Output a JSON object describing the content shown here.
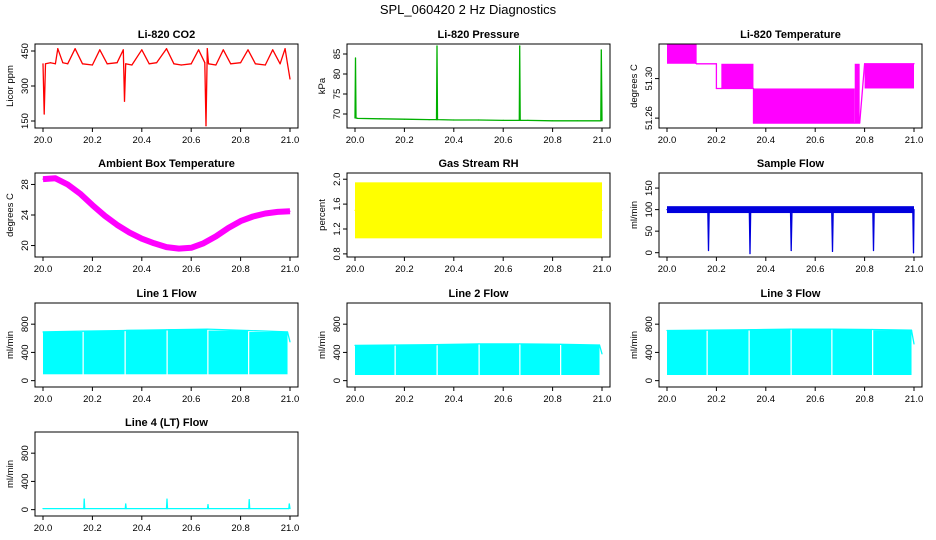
{
  "figure": {
    "title": "SPL_060420  2 Hz Diagnostics"
  },
  "chart_data": [
    {
      "type": "line",
      "title": "Li-820 CO2",
      "ylabel": "Licor ppm",
      "color": "#ff0000",
      "xlim": [
        20.0,
        21.0
      ],
      "ylim": [
        120,
        480
      ],
      "xticks": [
        "20.0",
        "20.2",
        "20.4",
        "20.6",
        "20.8",
        "21.0"
      ],
      "xtick_values": [
        20.0,
        20.2,
        20.4,
        20.6,
        20.8,
        21.0
      ],
      "yticks": [
        "150",
        "300",
        "450"
      ],
      "ytick_values": [
        150,
        300,
        450
      ],
      "series": [
        {
          "x": [
            20.0,
            20.005,
            20.01,
            20.03,
            20.05,
            20.06,
            20.08,
            20.1,
            20.13,
            20.16,
            20.2,
            20.23,
            20.26,
            20.3,
            20.325,
            20.33,
            20.335,
            20.36,
            20.4,
            20.43,
            20.46,
            20.5,
            20.53,
            20.56,
            20.6,
            20.63,
            20.655,
            20.66,
            20.665,
            20.67,
            20.7,
            20.73,
            20.76,
            20.8,
            20.83,
            20.86,
            20.9,
            20.93,
            20.96,
            20.98,
            20.99,
            21.0
          ],
          "values": [
            395,
            180,
            395,
            400,
            395,
            460,
            400,
            395,
            460,
            395,
            390,
            455,
            395,
            400,
            455,
            235,
            395,
            390,
            455,
            395,
            400,
            460,
            395,
            390,
            395,
            455,
            400,
            130,
            460,
            395,
            390,
            455,
            395,
            400,
            455,
            395,
            390,
            455,
            395,
            460,
            395,
            330
          ]
        }
      ]
    },
    {
      "type": "line",
      "title": "Li-820 Pressure",
      "ylabel": "kPa",
      "color": "#00b000",
      "xlim": [
        20.0,
        21.0
      ],
      "ylim": [
        66.5,
        87.5
      ],
      "xticks": [
        "20.0",
        "20.2",
        "20.4",
        "20.6",
        "20.8",
        "21.0"
      ],
      "xtick_values": [
        20.0,
        20.2,
        20.4,
        20.6,
        20.8,
        21.0
      ],
      "yticks": [
        "70",
        "75",
        "80",
        "85"
      ],
      "ytick_values": [
        70,
        75,
        80,
        85
      ],
      "series": [
        {
          "x": [
            20.0,
            20.002,
            20.004,
            20.01,
            20.1,
            20.2,
            20.3,
            20.33,
            20.332,
            20.334,
            20.4,
            20.5,
            20.6,
            20.665,
            20.667,
            20.669,
            20.7,
            20.8,
            20.9,
            20.995,
            20.997,
            21.0
          ],
          "values": [
            69,
            84,
            69,
            68.9,
            68.8,
            68.7,
            68.6,
            68.6,
            87,
            68.6,
            68.5,
            68.5,
            68.4,
            68.4,
            87,
            68.4,
            68.4,
            68.3,
            68.3,
            68.3,
            86,
            68.3
          ]
        }
      ]
    },
    {
      "type": "line",
      "title": "Li-820 Temperature",
      "ylabel": "degrees C",
      "color": "#ff00ff",
      "xlim": [
        20.0,
        21.0
      ],
      "ylim": [
        51.25,
        51.335
      ],
      "xticks": [
        "20.0",
        "20.2",
        "20.4",
        "20.6",
        "20.8",
        "21.0"
      ],
      "xtick_values": [
        20.0,
        20.2,
        20.4,
        20.6,
        20.8,
        21.0
      ],
      "yticks": [
        "51.26",
        "51.30"
      ],
      "ytick_values": [
        51.26,
        51.3
      ],
      "bands": [
        {
          "x0": 20.0,
          "x1": 20.12,
          "ymin": 51.315,
          "ymax": 51.335
        },
        {
          "x0": 20.22,
          "x1": 20.35,
          "ymin": 51.29,
          "ymax": 51.315
        },
        {
          "x0": 20.35,
          "x1": 20.76,
          "ymin": 51.255,
          "ymax": 51.29
        },
        {
          "x0": 20.76,
          "x1": 20.78,
          "ymin": 51.255,
          "ymax": 51.315
        },
        {
          "x0": 20.8,
          "x1": 21.0,
          "ymin": 51.29,
          "ymax": 51.315
        }
      ],
      "series": [
        {
          "x": [
            20.0,
            20.12,
            20.12,
            20.2,
            20.2,
            20.22,
            20.35,
            20.35,
            20.76,
            20.78,
            20.8,
            21.0
          ],
          "values": [
            51.335,
            51.315,
            51.315,
            51.315,
            51.29,
            51.29,
            51.29,
            51.255,
            51.255,
            51.255,
            51.315,
            51.315
          ]
        }
      ]
    },
    {
      "type": "line",
      "title": "Ambient Box Temperature",
      "ylabel": "degrees C",
      "color": "#ff00ff",
      "xlim": [
        20.0,
        21.0
      ],
      "ylim": [
        18.5,
        29.5
      ],
      "xticks": [
        "20.0",
        "20.2",
        "20.4",
        "20.6",
        "20.8",
        "21.0"
      ],
      "xtick_values": [
        20.0,
        20.2,
        20.4,
        20.6,
        20.8,
        21.0
      ],
      "yticks": [
        "20",
        "24",
        "28"
      ],
      "ytick_values": [
        20,
        24,
        28
      ],
      "series": [
        {
          "x": [
            20.0,
            20.05,
            20.1,
            20.15,
            20.2,
            20.25,
            20.3,
            20.35,
            20.4,
            20.45,
            20.5,
            20.55,
            20.6,
            20.65,
            20.7,
            20.75,
            20.8,
            20.85,
            20.9,
            20.95,
            21.0
          ],
          "values": [
            28.7,
            28.8,
            28.0,
            26.8,
            25.3,
            23.9,
            22.7,
            21.7,
            20.9,
            20.3,
            19.8,
            19.6,
            19.7,
            20.3,
            21.2,
            22.3,
            23.2,
            23.8,
            24.2,
            24.4,
            24.5
          ]
        }
      ]
    },
    {
      "type": "line",
      "title": "Gas Stream RH",
      "ylabel": "percent",
      "color": "#ffff00",
      "xlim": [
        20.0,
        21.0
      ],
      "ylim": [
        0.75,
        2.1
      ],
      "xticks": [
        "20.0",
        "20.2",
        "20.4",
        "20.6",
        "20.8",
        "21.0"
      ],
      "xtick_values": [
        20.0,
        20.2,
        20.4,
        20.6,
        20.8,
        21.0
      ],
      "yticks": [
        "0.8",
        "1.2",
        "1.6",
        "2.0"
      ],
      "ytick_values": [
        0.8,
        1.2,
        1.6,
        2.0
      ],
      "bands": [
        {
          "x0": 20.0,
          "x1": 21.0,
          "ymin": 1.05,
          "ymax": 1.95
        }
      ],
      "series": [
        {
          "x": [
            20.0,
            20.1,
            20.2,
            20.3,
            20.4,
            20.5,
            20.6,
            20.7,
            20.8,
            20.9,
            21.0
          ],
          "values": [
            1.5,
            1.45,
            1.5,
            1.55,
            1.5,
            1.45,
            1.5,
            1.55,
            1.5,
            1.45,
            1.5
          ]
        }
      ]
    },
    {
      "type": "line",
      "title": "Sample Flow",
      "ylabel": "ml/min",
      "color": "#0000dd",
      "xlim": [
        20.0,
        21.0
      ],
      "ylim": [
        -10,
        185
      ],
      "xticks": [
        "20.0",
        "20.2",
        "20.4",
        "20.6",
        "20.8",
        "21.0"
      ],
      "xtick_values": [
        20.0,
        20.2,
        20.4,
        20.6,
        20.8,
        21.0
      ],
      "yticks": [
        "0",
        "50",
        "100",
        "150"
      ],
      "ytick_values": [
        0,
        50,
        100,
        150
      ],
      "bands": [
        {
          "x0": 20.0,
          "x1": 21.0,
          "ymin": 92,
          "ymax": 108
        }
      ],
      "series": [
        {
          "x": [
            20.0,
            20.1,
            20.165,
            20.168,
            20.171,
            20.3,
            20.333,
            20.336,
            20.339,
            20.45,
            20.5,
            20.503,
            20.506,
            20.6,
            20.667,
            20.67,
            20.673,
            20.78,
            20.833,
            20.836,
            20.839,
            20.95,
            20.995,
            20.998,
            21.0
          ],
          "values": [
            100,
            100,
            100,
            5,
            100,
            100,
            100,
            -2,
            100,
            100,
            100,
            5,
            100,
            100,
            100,
            3,
            100,
            100,
            100,
            5,
            100,
            100,
            100,
            0,
            100
          ]
        }
      ]
    },
    {
      "type": "area",
      "title": "Line 1 Flow",
      "ylabel": "ml/min",
      "color": "#00ffff",
      "xlim": [
        20.0,
        21.0
      ],
      "ylim": [
        -90,
        1100
      ],
      "xticks": [
        "20.0",
        "20.2",
        "20.4",
        "20.6",
        "20.8",
        "21.0"
      ],
      "xtick_values": [
        20.0,
        20.2,
        20.4,
        20.6,
        20.8,
        21.0
      ],
      "yticks": [
        "0",
        "400",
        "800"
      ],
      "ytick_values": [
        0,
        400,
        800
      ],
      "bands": [
        {
          "x0": 20.0,
          "x1": 20.16,
          "ymin": 90,
          "ymax": 690
        },
        {
          "x0": 20.165,
          "x1": 20.33,
          "ymin": 90,
          "ymax": 710
        },
        {
          "x0": 20.335,
          "x1": 20.5,
          "ymin": 90,
          "ymax": 720
        },
        {
          "x0": 20.505,
          "x1": 20.665,
          "ymin": 90,
          "ymax": 730
        },
        {
          "x0": 20.67,
          "x1": 20.83,
          "ymin": 90,
          "ymax": 710
        },
        {
          "x0": 20.835,
          "x1": 20.99,
          "ymin": 90,
          "ymax": 690
        }
      ],
      "series": [
        {
          "x": [
            20.0,
            20.16,
            20.33,
            20.5,
            20.665,
            20.83,
            20.99,
            21.0
          ],
          "values": [
            690,
            700,
            710,
            720,
            730,
            710,
            690,
            550
          ]
        }
      ]
    },
    {
      "type": "area",
      "title": "Line 2 Flow",
      "ylabel": "ml/min",
      "color": "#00ffff",
      "xlim": [
        20.0,
        21.0
      ],
      "ylim": [
        -90,
        1100
      ],
      "xticks": [
        "20.0",
        "20.2",
        "20.4",
        "20.6",
        "20.8",
        "21.0"
      ],
      "xtick_values": [
        20.0,
        20.2,
        20.4,
        20.6,
        20.8,
        21.0
      ],
      "yticks": [
        "0",
        "400",
        "800"
      ],
      "ytick_values": [
        0,
        400,
        800
      ],
      "bands": [
        {
          "x0": 20.0,
          "x1": 20.16,
          "ymin": 80,
          "ymax": 500
        },
        {
          "x0": 20.165,
          "x1": 20.33,
          "ymin": 80,
          "ymax": 510
        },
        {
          "x0": 20.335,
          "x1": 20.5,
          "ymin": 80,
          "ymax": 520
        },
        {
          "x0": 20.505,
          "x1": 20.665,
          "ymin": 80,
          "ymax": 520
        },
        {
          "x0": 20.67,
          "x1": 20.83,
          "ymin": 80,
          "ymax": 515
        },
        {
          "x0": 20.835,
          "x1": 20.99,
          "ymin": 80,
          "ymax": 505
        }
      ],
      "series": [
        {
          "x": [
            20.0,
            20.16,
            20.33,
            20.5,
            20.665,
            20.83,
            20.99,
            21.0
          ],
          "values": [
            500,
            505,
            510,
            520,
            520,
            515,
            505,
            380
          ]
        }
      ]
    },
    {
      "type": "area",
      "title": "Line 3 Flow",
      "ylabel": "ml/min",
      "color": "#00ffff",
      "xlim": [
        20.0,
        21.0
      ],
      "ylim": [
        -90,
        1100
      ],
      "xticks": [
        "20.0",
        "20.2",
        "20.4",
        "20.6",
        "20.8",
        "21.0"
      ],
      "xtick_values": [
        20.0,
        20.2,
        20.4,
        20.6,
        20.8,
        21.0
      ],
      "yticks": [
        "0",
        "400",
        "800"
      ],
      "ytick_values": [
        0,
        400,
        800
      ],
      "bands": [
        {
          "x0": 20.0,
          "x1": 20.16,
          "ymin": 80,
          "ymax": 710
        },
        {
          "x0": 20.165,
          "x1": 20.33,
          "ymin": 80,
          "ymax": 720
        },
        {
          "x0": 20.335,
          "x1": 20.5,
          "ymin": 80,
          "ymax": 730
        },
        {
          "x0": 20.505,
          "x1": 20.665,
          "ymin": 80,
          "ymax": 730
        },
        {
          "x0": 20.67,
          "x1": 20.83,
          "ymin": 80,
          "ymax": 725
        },
        {
          "x0": 20.835,
          "x1": 20.99,
          "ymin": 80,
          "ymax": 715
        }
      ],
      "series": [
        {
          "x": [
            20.0,
            20.16,
            20.33,
            20.5,
            20.665,
            20.83,
            20.99,
            21.0
          ],
          "values": [
            710,
            715,
            720,
            730,
            730,
            725,
            715,
            520
          ]
        }
      ]
    },
    {
      "type": "line",
      "title": "Line 4 (LT) Flow",
      "ylabel": "ml/min",
      "color": "#00ffff",
      "xlim": [
        20.0,
        21.0
      ],
      "ylim": [
        -90,
        1100
      ],
      "xticks": [
        "20.0",
        "20.2",
        "20.4",
        "20.6",
        "20.8",
        "21.0"
      ],
      "xtick_values": [
        20.0,
        20.2,
        20.4,
        20.6,
        20.8,
        21.0
      ],
      "yticks": [
        "0",
        "400",
        "800"
      ],
      "ytick_values": [
        0,
        400,
        800
      ],
      "series": [
        {
          "x": [
            20.0,
            20.165,
            20.167,
            20.169,
            20.333,
            20.335,
            20.337,
            20.5,
            20.502,
            20.504,
            20.666,
            20.668,
            20.67,
            20.833,
            20.835,
            20.837,
            20.995,
            20.997,
            21.0
          ],
          "values": [
            15,
            15,
            150,
            15,
            15,
            80,
            15,
            15,
            150,
            15,
            15,
            70,
            15,
            15,
            140,
            15,
            15,
            80,
            15
          ]
        }
      ]
    }
  ]
}
